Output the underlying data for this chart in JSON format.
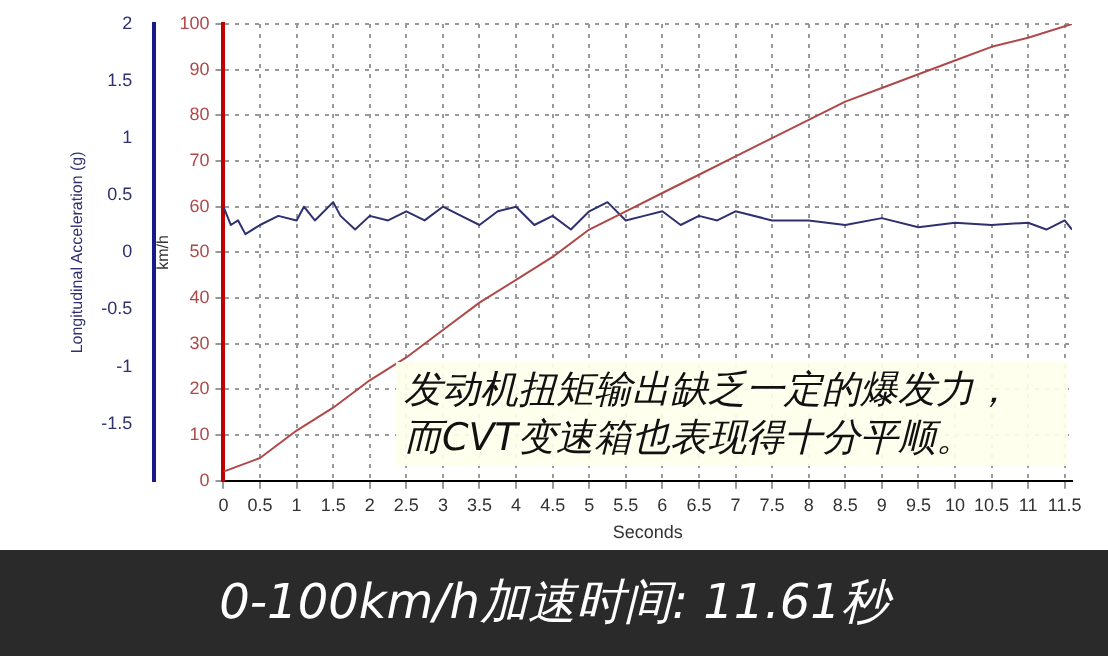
{
  "chart_data": {
    "type": "line",
    "xlabel": "Seconds",
    "ylabel": "Longitudinal Acceleration (g)",
    "y2label": "km/h",
    "annotations": [
      "发动机扭矩输出缺乏一定的爆发力，",
      "而CVT变速箱也表现得十分平顺。",
      "0-100km/h加速时间: 11.61秒"
    ],
    "xlim": [
      0,
      11.6
    ],
    "xticks": [
      0,
      0.5,
      1,
      1.5,
      2,
      2.5,
      3,
      3.5,
      4,
      4.5,
      5,
      5.5,
      6,
      6.5,
      7,
      7.5,
      8,
      8.5,
      9,
      9.5,
      10,
      10.5,
      11,
      11.5
    ],
    "ylim": [
      -2,
      2
    ],
    "yticks": [
      -1.5,
      -1,
      -0.5,
      0,
      0.5,
      1,
      1.5,
      2
    ],
    "y2lim": [
      0,
      100
    ],
    "y2ticks": [
      0,
      10,
      20,
      30,
      40,
      50,
      60,
      70,
      80,
      90,
      100
    ],
    "grid": true,
    "legend": false,
    "marker": "none",
    "line_style": "solid",
    "series": [
      {
        "color": "#b04848",
        "axis": "y2",
        "x": [
          0,
          0.5,
          1,
          1.5,
          2,
          2.5,
          3,
          3.5,
          4,
          4.5,
          5,
          5.5,
          6,
          6.5,
          7,
          7.5,
          8,
          8.5,
          9,
          9.5,
          10,
          10.5,
          11,
          11.6
        ],
        "values": [
          2,
          5,
          11,
          16,
          22,
          27,
          33,
          39,
          44,
          49,
          55,
          59,
          63,
          67,
          71,
          75,
          79,
          83,
          86,
          89,
          92,
          95,
          97,
          100
        ]
      },
      {
        "color": "#2e3070",
        "axis": "y",
        "x": [
          0,
          0.1,
          0.2,
          0.3,
          0.5,
          0.75,
          1,
          1.1,
          1.25,
          1.5,
          1.6,
          1.8,
          2,
          2.25,
          2.5,
          2.75,
          3,
          3.25,
          3.5,
          3.75,
          4,
          4.25,
          4.5,
          4.75,
          5,
          5.25,
          5.5,
          5.75,
          6,
          6.25,
          6.5,
          6.75,
          7,
          7.5,
          8,
          8.5,
          9,
          9.5,
          10,
          10.5,
          11,
          11.25,
          11.5,
          11.6
        ],
        "values": [
          0.4,
          0.24,
          0.28,
          0.16,
          0.24,
          0.32,
          0.28,
          0.4,
          0.28,
          0.44,
          0.32,
          0.2,
          0.32,
          0.28,
          0.36,
          0.28,
          0.4,
          0.32,
          0.24,
          0.36,
          0.4,
          0.24,
          0.32,
          0.2,
          0.36,
          0.44,
          0.28,
          0.32,
          0.36,
          0.24,
          0.32,
          0.28,
          0.36,
          0.28,
          0.28,
          0.24,
          0.3,
          0.22,
          0.26,
          0.24,
          0.26,
          0.2,
          0.28,
          0.2
        ]
      }
    ]
  }
}
